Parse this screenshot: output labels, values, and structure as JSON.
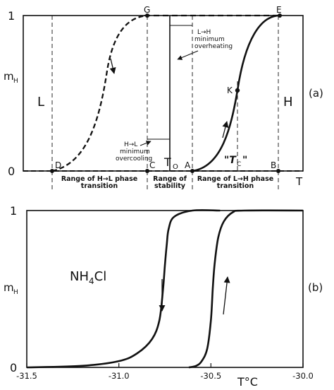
{
  "panel_a": {
    "y_one": "1",
    "y_zero": "0",
    "y_label_main": "m",
    "y_label_sub": "H",
    "panel_label": "(a)",
    "phase_low": "L",
    "phase_high": "H",
    "x_axis_label": "T",
    "points": {
      "G": "G",
      "E": "E",
      "K": "K",
      "D": "D",
      "C": "C",
      "A": "A",
      "B": "B"
    },
    "t0_main": "T",
    "t0_sub": "O",
    "tc_text": "\"T",
    "tc_sub": "C",
    "tc_close": "\"",
    "ann_lh_title": "L→H",
    "ann_lh_line1": "minimum",
    "ann_lh_line2": "overheating",
    "ann_hl_title": "H→L",
    "ann_hl_line1": "minimum",
    "ann_hl_line2": "overcooling",
    "range_hl_1": "Range of H→L phase",
    "range_hl_2": "transition",
    "range_stab_1": "Range of",
    "range_stab_2": "stability",
    "range_lh_1": "Range of L→H phase",
    "range_lh_2": "transition"
  },
  "panel_b": {
    "y_one": "1",
    "y_zero": "0",
    "y_label_main": "m",
    "y_label_sub": "H",
    "panel_label": "(b)",
    "compound_pre": "NH",
    "compound_sub": "4",
    "compound_post": "Cl",
    "x_axis_main": "T",
    "x_axis_unit": "°C",
    "x_ticks": [
      "-31.5",
      "-31.0",
      "-30.5",
      "-30.0"
    ]
  },
  "chart_data": {
    "type": "line",
    "xlabel": "T °C",
    "ylabel": "mH",
    "xlim": [
      -31.5,
      -30.0
    ],
    "ylim": [
      0,
      1
    ],
    "series": [
      {
        "x": [
          -31.5,
          -31.2,
          -31.0,
          -30.9,
          -30.82,
          -30.78,
          -30.76,
          -30.75,
          -30.74,
          -30.73,
          -30.7,
          -30.6,
          -30.45
        ],
        "y": [
          0.0,
          0.01,
          0.04,
          0.09,
          0.18,
          0.3,
          0.5,
          0.65,
          0.78,
          0.88,
          0.96,
          1.0,
          1.0
        ]
      },
      {
        "x": [
          -30.62,
          -30.58,
          -30.55,
          -30.52,
          -30.5,
          -30.49,
          -30.48,
          -30.46,
          -30.43,
          -30.38,
          -30.32,
          -30.0
        ],
        "y": [
          0.0,
          0.01,
          0.04,
          0.12,
          0.3,
          0.5,
          0.66,
          0.83,
          0.93,
          0.99,
          1.0,
          1.0
        ]
      }
    ]
  }
}
